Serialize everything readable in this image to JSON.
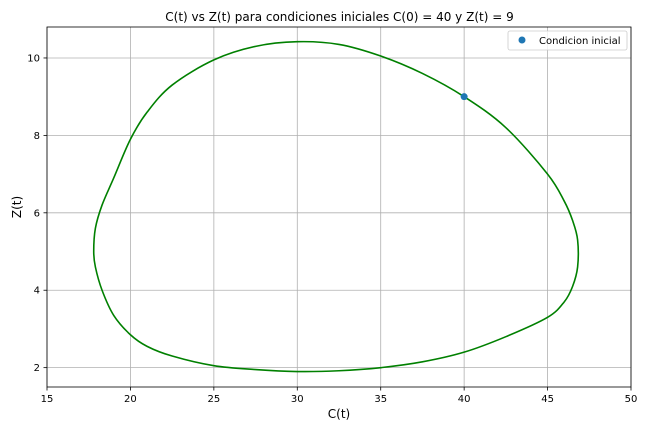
{
  "chart_data": {
    "type": "line",
    "title": "C(t) vs Z(t) para condiciones iniciales C(0) = 40 y Z(t) = 9",
    "xlabel": "C(t)",
    "ylabel": "Z(t)",
    "xlim": [
      15,
      50
    ],
    "ylim": [
      1.5,
      10.8
    ],
    "xticks": [
      15,
      20,
      25,
      30,
      35,
      40,
      45,
      50
    ],
    "yticks": [
      2,
      4,
      6,
      8,
      10
    ],
    "grid": true,
    "legend_position": "top-right",
    "series": [
      {
        "type": "line",
        "color": "#008000",
        "x": [
          40,
          42.5,
          45,
          46,
          46.5,
          46.8,
          46.8,
          46.5,
          46,
          45,
          42.5,
          40,
          37.5,
          35,
          32.5,
          30,
          27.5,
          25,
          22.5,
          21,
          20,
          19,
          18.3,
          17.9,
          17.8,
          17.9,
          18.3,
          19,
          20,
          21,
          22.5,
          25,
          27.5,
          30,
          32.5,
          35,
          37.5,
          40
        ],
        "y": [
          9,
          8.2,
          7,
          6.3,
          5.8,
          5.3,
          4.6,
          4.1,
          3.7,
          3.3,
          2.8,
          2.4,
          2.15,
          2.0,
          1.92,
          1.9,
          1.95,
          2.05,
          2.3,
          2.55,
          2.85,
          3.35,
          4.0,
          4.6,
          5.0,
          5.6,
          6.2,
          6.9,
          7.9,
          8.6,
          9.3,
          9.95,
          10.3,
          10.42,
          10.35,
          10.05,
          9.6,
          9
        ]
      }
    ],
    "points": [
      {
        "label": "Condicion inicial",
        "x": 40,
        "y": 9,
        "color": "#1f77b4"
      }
    ]
  }
}
